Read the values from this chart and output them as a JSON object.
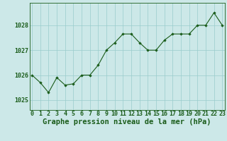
{
  "x": [
    0,
    1,
    2,
    3,
    4,
    5,
    6,
    7,
    8,
    9,
    10,
    11,
    12,
    13,
    14,
    15,
    16,
    17,
    18,
    19,
    20,
    21,
    22,
    23
  ],
  "y": [
    1026.0,
    1025.7,
    1025.3,
    1025.9,
    1025.6,
    1025.65,
    1026.0,
    1026.0,
    1026.4,
    1027.0,
    1027.3,
    1027.65,
    1027.65,
    1027.3,
    1027.0,
    1027.0,
    1027.4,
    1027.65,
    1027.65,
    1027.65,
    1028.0,
    1028.0,
    1028.5,
    1028.0
  ],
  "line_color": "#1a5c1a",
  "marker_color": "#1a5c1a",
  "bg_color": "#cce8e8",
  "grid_color": "#99cccc",
  "title": "Graphe pression niveau de la mer (hPa)",
  "ylim_min": 1024.6,
  "ylim_max": 1028.9,
  "yticks": [
    1025,
    1026,
    1027,
    1028
  ],
  "xticks": [
    0,
    1,
    2,
    3,
    4,
    5,
    6,
    7,
    8,
    9,
    10,
    11,
    12,
    13,
    14,
    15,
    16,
    17,
    18,
    19,
    20,
    21,
    22,
    23
  ],
  "title_fontsize": 7.5,
  "tick_fontsize": 6,
  "title_color": "#1a5c1a",
  "tick_color": "#1a5c1a",
  "spine_color": "#1a5c1a"
}
